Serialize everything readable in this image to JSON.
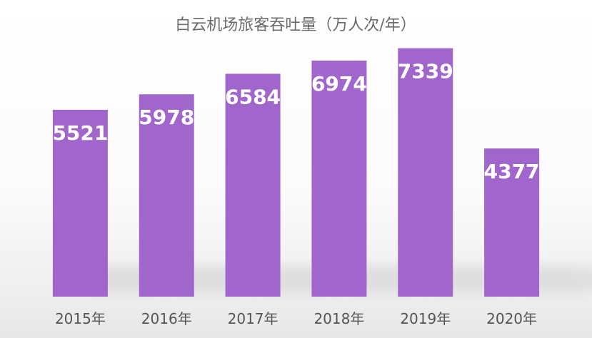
{
  "chart_data": {
    "type": "bar",
    "title": "白云机场旅客吞吐量（万人次/年）",
    "xlabel": "",
    "ylabel": "",
    "categories": [
      "2015年",
      "2016年",
      "2017年",
      "2018年",
      "2019年",
      "2020年"
    ],
    "values": [
      5521,
      5978,
      6584,
      6974,
      7339,
      4377
    ],
    "ylim": [
      0,
      7500
    ],
    "grid": false,
    "legend": "none",
    "colors": {
      "bar": "#a066cc",
      "value_label": "#ffffff",
      "tick_label": "#555555",
      "title": "#6b6b6b"
    }
  }
}
